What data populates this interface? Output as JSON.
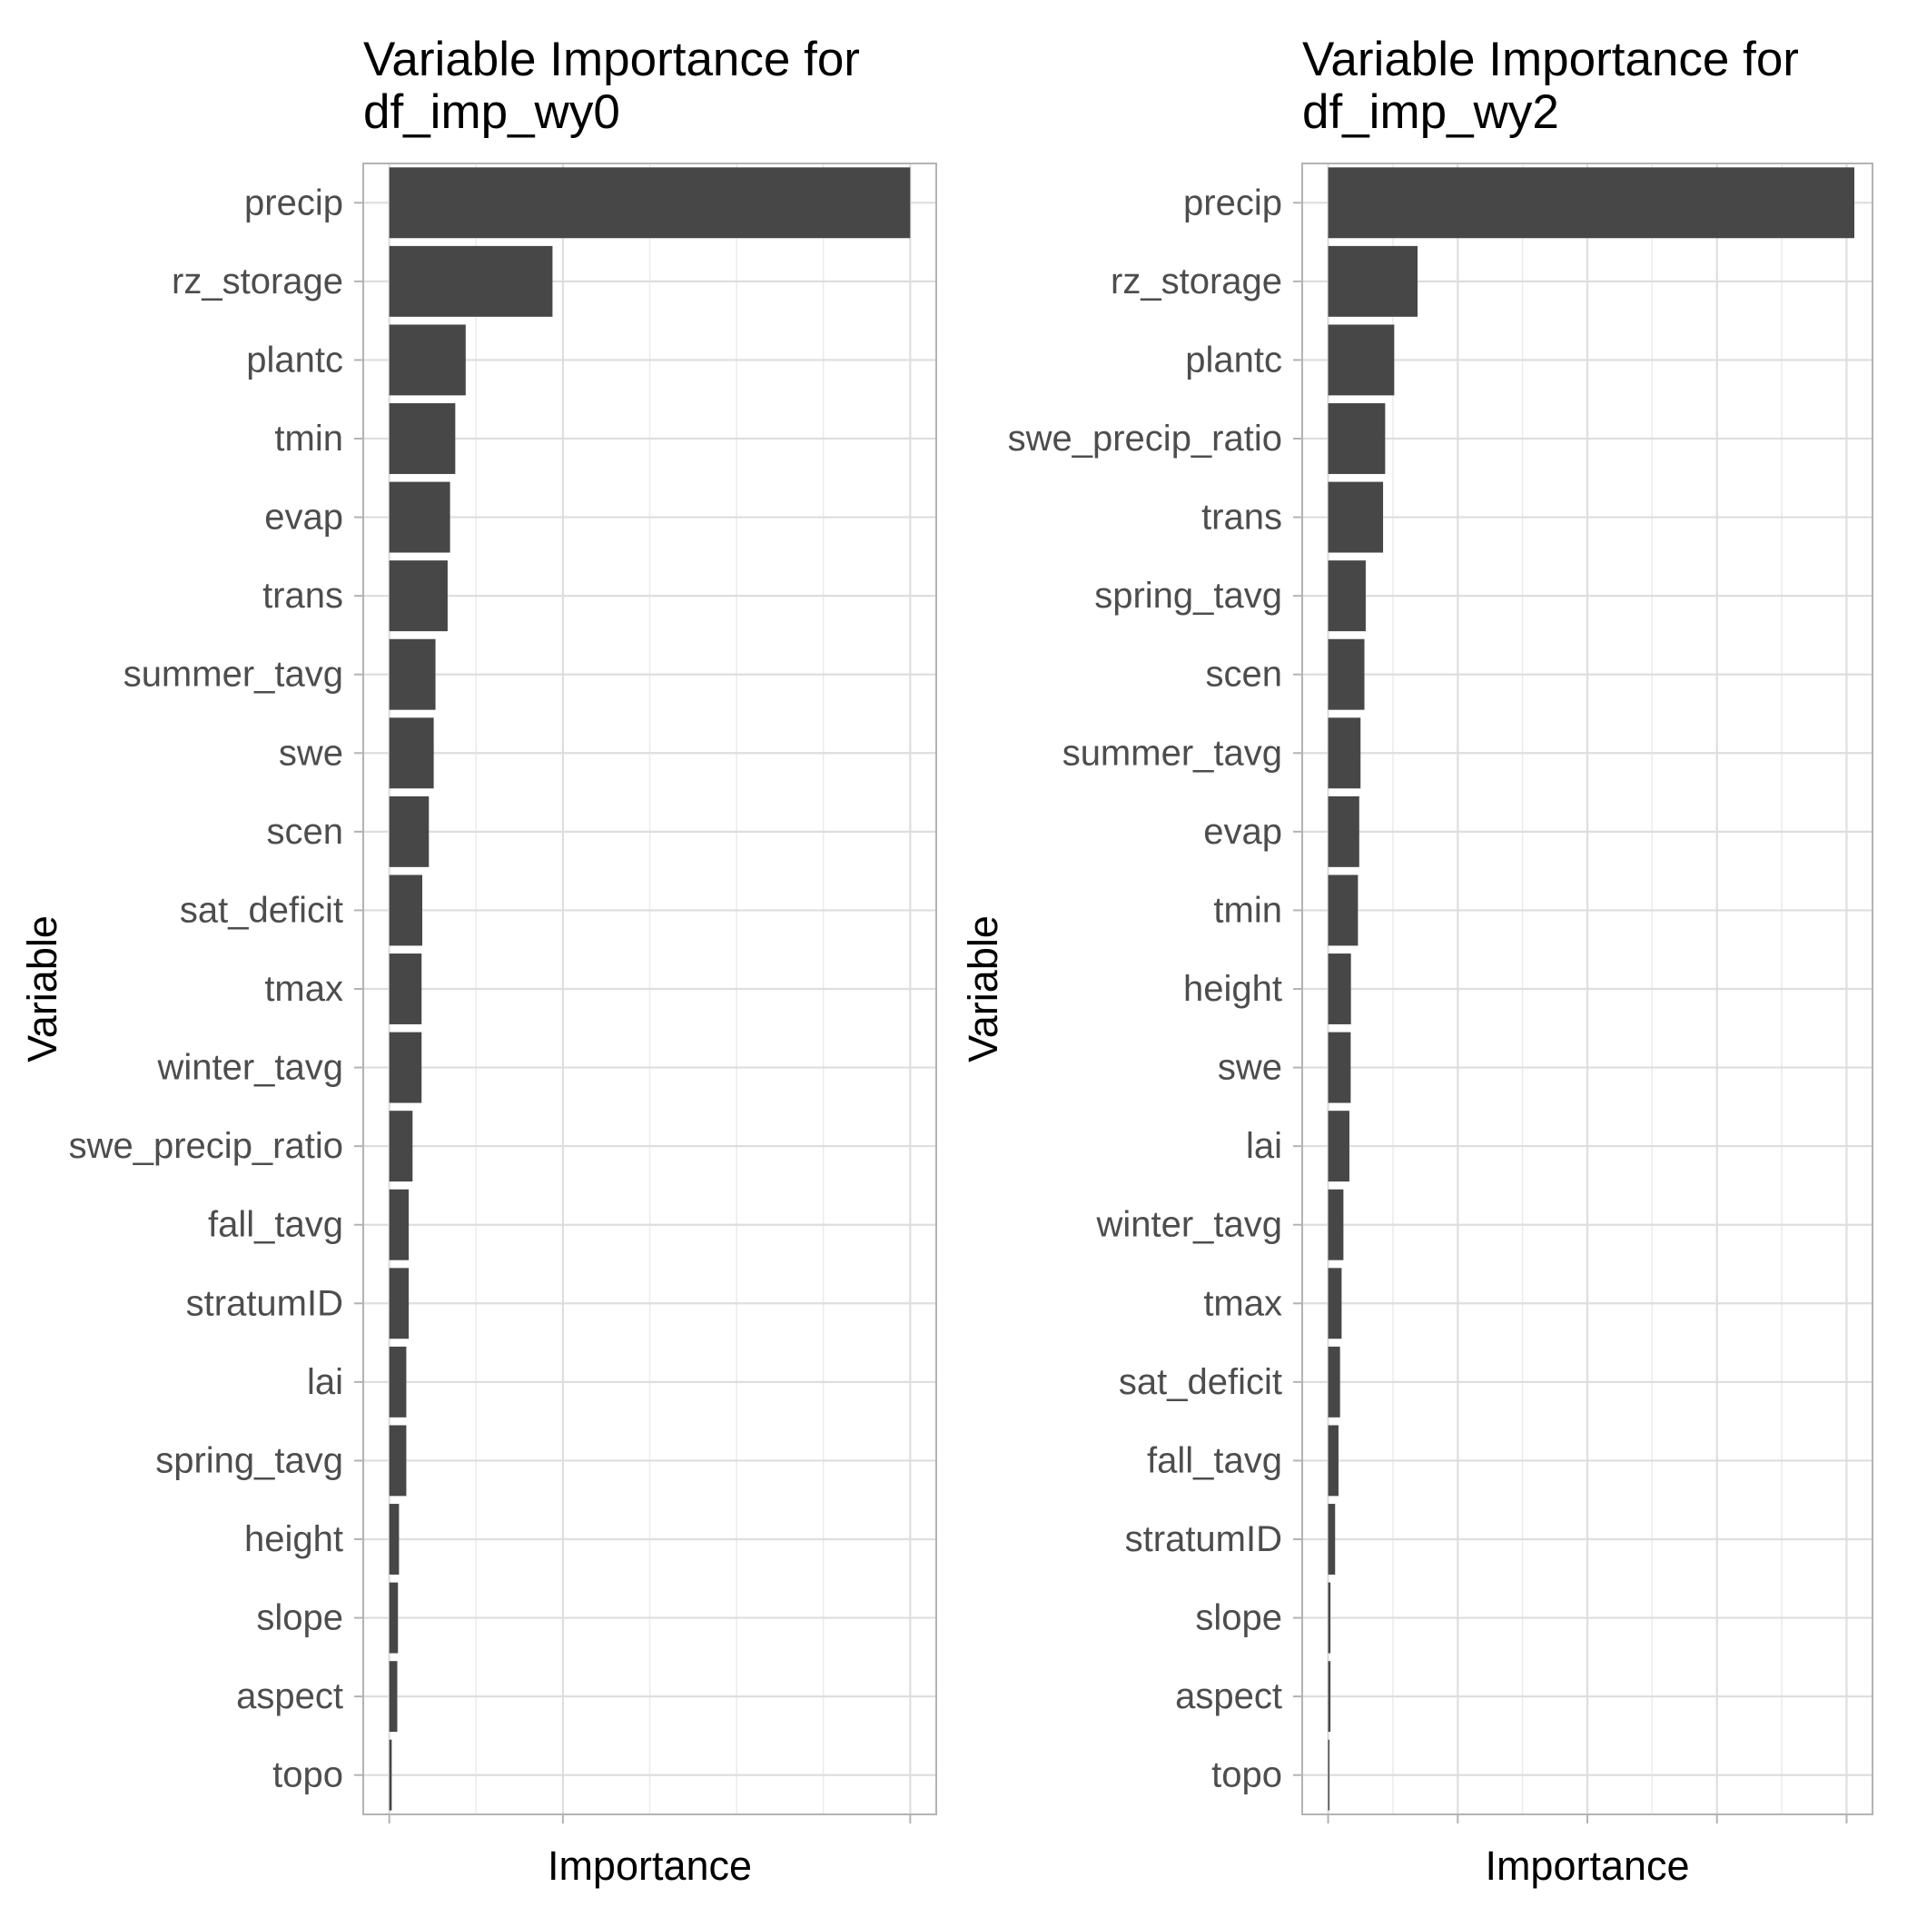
{
  "chart_data": [
    {
      "type": "bar",
      "orientation": "horizontal",
      "title": "Variable Importance for df_imp_wy0",
      "title_lines": [
        "Variable Importance for",
        "df_imp_wy0"
      ],
      "xlabel": "Importance",
      "ylabel": "Variable",
      "x_tick_labels_shown": false,
      "xlim": [
        -0.075,
        1.575
      ],
      "x_major_ticks": [
        0,
        0.5,
        1.5
      ],
      "x_minor_grid": [
        0.25,
        0.75,
        1.0,
        1.25
      ],
      "grid": true,
      "bar_color": "#474747",
      "categories": [
        "precip",
        "rz_storage",
        "plantc",
        "tmin",
        "evap",
        "trans",
        "summer_tavg",
        "swe",
        "scen",
        "sat_deficit",
        "tmax",
        "winter_tavg",
        "swe_precip_ratio",
        "fall_tavg",
        "stratumID",
        "lai",
        "spring_tavg",
        "height",
        "slope",
        "aspect",
        "topo"
      ],
      "values": [
        1.5,
        0.47,
        0.22,
        0.19,
        0.175,
        0.168,
        0.133,
        0.128,
        0.114,
        0.095,
        0.093,
        0.093,
        0.067,
        0.056,
        0.056,
        0.049,
        0.049,
        0.028,
        0.025,
        0.023,
        0.007
      ]
    },
    {
      "type": "bar",
      "orientation": "horizontal",
      "title": "Variable Importance for df_imp_wy2",
      "title_lines": [
        "Variable Importance for",
        "df_imp_wy2"
      ],
      "xlabel": "Importance",
      "ylabel": "Variable",
      "x_tick_labels_shown": false,
      "xlim": [
        -0.1,
        2.1
      ],
      "x_major_ticks": [
        0,
        0.5,
        1.0,
        1.5,
        2.0
      ],
      "x_minor_grid": [
        0.25,
        0.75,
        1.25,
        1.75
      ],
      "grid": true,
      "bar_color": "#474747",
      "categories": [
        "precip",
        "rz_storage",
        "plantc",
        "swe_precip_ratio",
        "trans",
        "spring_tavg",
        "scen",
        "summer_tavg",
        "evap",
        "tmin",
        "height",
        "swe",
        "lai",
        "winter_tavg",
        "tmax",
        "sat_deficit",
        "fall_tavg",
        "stratumID",
        "slope",
        "aspect",
        "topo"
      ],
      "values": [
        2.03,
        0.345,
        0.255,
        0.22,
        0.212,
        0.145,
        0.14,
        0.125,
        0.12,
        0.115,
        0.088,
        0.087,
        0.082,
        0.059,
        0.052,
        0.046,
        0.04,
        0.027,
        0.009,
        0.009,
        0.003
      ]
    }
  ]
}
